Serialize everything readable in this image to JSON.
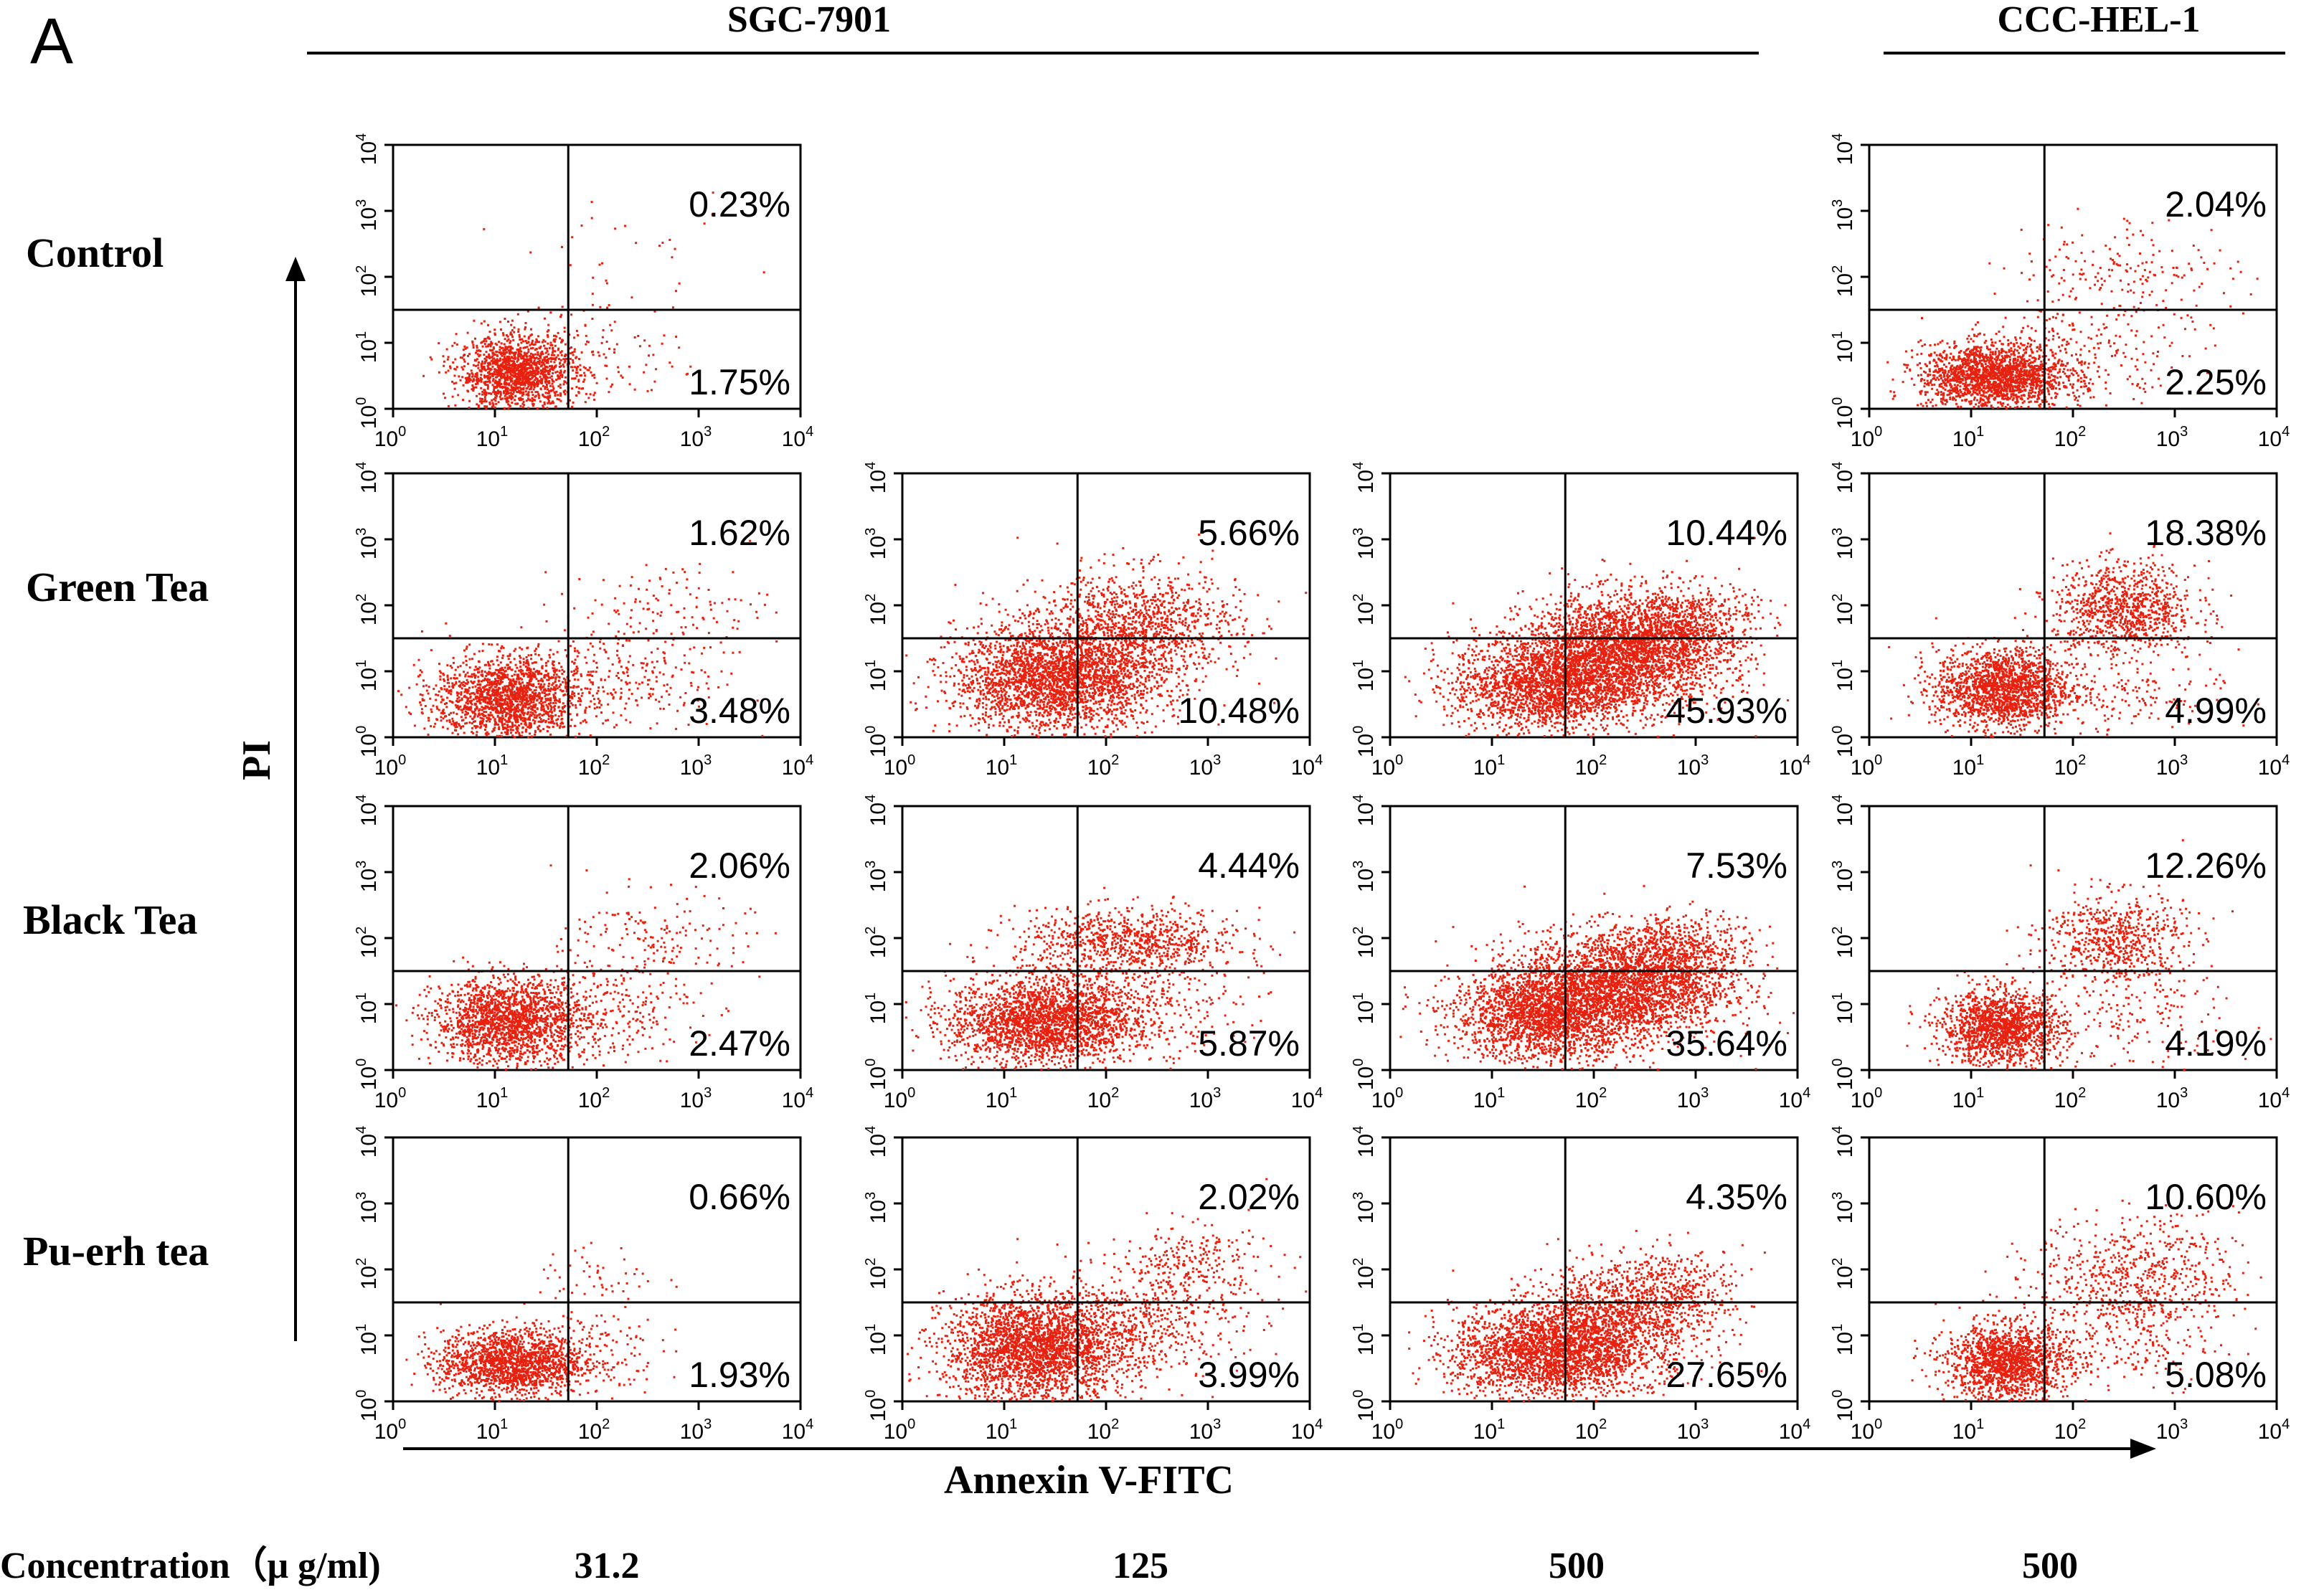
{
  "figure": {
    "panel_label": "A",
    "cell_lines": [
      "SGC-7901",
      "CCC-HEL-1"
    ],
    "row_labels": [
      "Control",
      "Green Tea",
      "Black Tea",
      "Pu-erh tea"
    ],
    "concentration_label": "Concentration（μ g/ml)",
    "concentrations": [
      "31.2",
      "125",
      "500",
      "500"
    ],
    "x_axis_title": "Annexin V-FITC",
    "y_axis_title": "PI"
  },
  "colors": {
    "dots": "#e8200e",
    "axes": "#000000",
    "quadrant_lines": "#000000"
  },
  "chart_data": {
    "type": "scatter",
    "description_of_axes": "log10 fluorescence, 10^0 to 10^4",
    "xlim": [
      0,
      4
    ],
    "ylim": [
      0,
      4
    ],
    "x_log": true,
    "y_log": true,
    "x_ticks": [
      "0",
      "1",
      "2",
      "3",
      "4"
    ],
    "y_ticks": [
      "0",
      "1",
      "2",
      "3",
      "4"
    ],
    "tick_base": "10",
    "panels": [
      {
        "row": 0,
        "col": 0,
        "cell_line": "SGC-7901",
        "treatment": "Control",
        "concentration": "31.2",
        "upper_right": "0.23%",
        "lower_right": "1.75%",
        "quad_x": 1.72,
        "quad_y": 1.5,
        "clusters": [
          {
            "cx": 1.2,
            "cy": 0.55,
            "sx": 0.28,
            "sy": 0.28,
            "n": 1500
          },
          {
            "cx": 1.9,
            "cy": 0.8,
            "sx": 0.45,
            "sy": 0.45,
            "n": 160
          },
          {
            "cx": 2.4,
            "cy": 2.2,
            "sx": 0.5,
            "sy": 0.45,
            "n": 30
          }
        ]
      },
      {
        "row": 1,
        "col": 0,
        "cell_line": "SGC-7901",
        "treatment": "Green Tea",
        "concentration": "31.2",
        "upper_right": "1.62%",
        "lower_right": "3.48%",
        "quad_x": 1.72,
        "quad_y": 1.5,
        "clusters": [
          {
            "cx": 1.1,
            "cy": 0.6,
            "sx": 0.35,
            "sy": 0.32,
            "n": 1700
          },
          {
            "cx": 2.2,
            "cy": 0.9,
            "sx": 0.5,
            "sy": 0.4,
            "n": 260
          },
          {
            "cx": 2.7,
            "cy": 1.9,
            "sx": 0.5,
            "sy": 0.4,
            "n": 140
          }
        ]
      },
      {
        "row": 1,
        "col": 1,
        "cell_line": "SGC-7901",
        "treatment": "Green Tea",
        "concentration": "125",
        "upper_right": "5.66%",
        "lower_right": "10.48%",
        "quad_x": 1.72,
        "quad_y": 1.5,
        "clusters": [
          {
            "cx": 1.5,
            "cy": 0.9,
            "sx": 0.5,
            "sy": 0.4,
            "n": 2700
          },
          {
            "cx": 2.3,
            "cy": 1.7,
            "sx": 0.5,
            "sy": 0.42,
            "n": 1100
          }
        ]
      },
      {
        "row": 1,
        "col": 2,
        "cell_line": "SGC-7901",
        "treatment": "Green Tea",
        "concentration": "500",
        "upper_right": "10.44%",
        "lower_right": "45.93%",
        "quad_x": 1.72,
        "quad_y": 1.5,
        "clusters": [
          {
            "cx": 1.5,
            "cy": 0.8,
            "sx": 0.45,
            "sy": 0.35,
            "n": 1900
          },
          {
            "cx": 2.3,
            "cy": 1.3,
            "sx": 0.5,
            "sy": 0.42,
            "n": 2900
          },
          {
            "cx": 2.9,
            "cy": 1.75,
            "sx": 0.35,
            "sy": 0.3,
            "n": 500
          }
        ]
      },
      {
        "row": 1,
        "col": 3,
        "cell_line": "CCC-HEL-1",
        "treatment": "Green Tea",
        "concentration": "500",
        "upper_right": "18.38%",
        "lower_right": "4.99%",
        "quad_x": 1.72,
        "quad_y": 1.5,
        "clusters": [
          {
            "cx": 1.3,
            "cy": 0.75,
            "sx": 0.33,
            "sy": 0.3,
            "n": 1700
          },
          {
            "cx": 2.5,
            "cy": 1.95,
            "sx": 0.35,
            "sy": 0.35,
            "n": 950
          },
          {
            "cx": 2.4,
            "cy": 0.6,
            "sx": 0.55,
            "sy": 0.35,
            "n": 170
          }
        ]
      },
      {
        "row": 2,
        "col": 0,
        "cell_line": "SGC-7901",
        "treatment": "Black Tea",
        "concentration": "31.2",
        "upper_right": "2.06%",
        "lower_right": "2.47%",
        "quad_x": 1.72,
        "quad_y": 1.5,
        "clusters": [
          {
            "cx": 1.15,
            "cy": 0.75,
            "sx": 0.38,
            "sy": 0.32,
            "n": 1800
          },
          {
            "cx": 2.1,
            "cy": 0.95,
            "sx": 0.45,
            "sy": 0.4,
            "n": 220
          },
          {
            "cx": 2.6,
            "cy": 2.0,
            "sx": 0.45,
            "sy": 0.35,
            "n": 160
          }
        ]
      },
      {
        "row": 2,
        "col": 1,
        "cell_line": "SGC-7901",
        "treatment": "Black Tea",
        "concentration": "125",
        "upper_right": "4.44%",
        "lower_right": "5.87%",
        "quad_x": 1.72,
        "quad_y": 1.5,
        "clusters": [
          {
            "cx": 1.35,
            "cy": 0.75,
            "sx": 0.45,
            "sy": 0.33,
            "n": 2200
          },
          {
            "cx": 2.2,
            "cy": 1.95,
            "sx": 0.55,
            "sy": 0.25,
            "n": 850
          },
          {
            "cx": 2.3,
            "cy": 1.0,
            "sx": 0.5,
            "sy": 0.35,
            "n": 380
          }
        ]
      },
      {
        "row": 2,
        "col": 2,
        "cell_line": "SGC-7901",
        "treatment": "Black Tea",
        "concentration": "500",
        "upper_right": "7.53%",
        "lower_right": "35.64%",
        "quad_x": 1.72,
        "quad_y": 1.5,
        "clusters": [
          {
            "cx": 1.5,
            "cy": 0.85,
            "sx": 0.45,
            "sy": 0.35,
            "n": 2100
          },
          {
            "cx": 2.3,
            "cy": 1.3,
            "sx": 0.5,
            "sy": 0.42,
            "n": 2600
          },
          {
            "cx": 2.9,
            "cy": 1.8,
            "sx": 0.33,
            "sy": 0.28,
            "n": 450
          }
        ]
      },
      {
        "row": 2,
        "col": 3,
        "cell_line": "CCC-HEL-1",
        "treatment": "Black Tea",
        "concentration": "500",
        "upper_right": "12.26%",
        "lower_right": "4.19%",
        "quad_x": 1.72,
        "quad_y": 1.5,
        "clusters": [
          {
            "cx": 1.3,
            "cy": 0.65,
            "sx": 0.3,
            "sy": 0.28,
            "n": 1500
          },
          {
            "cx": 2.4,
            "cy": 2.0,
            "sx": 0.35,
            "sy": 0.35,
            "n": 650
          },
          {
            "cx": 2.6,
            "cy": 0.7,
            "sx": 0.6,
            "sy": 0.4,
            "n": 160
          }
        ]
      },
      {
        "row": 3,
        "col": 0,
        "cell_line": "SGC-7901",
        "treatment": "Pu-erh tea",
        "concentration": "31.2",
        "upper_right": "0.66%",
        "lower_right": "1.93%",
        "quad_x": 1.72,
        "quad_y": 1.5,
        "clusters": [
          {
            "cx": 1.15,
            "cy": 0.6,
            "sx": 0.35,
            "sy": 0.25,
            "n": 1600
          },
          {
            "cx": 1.9,
            "cy": 0.8,
            "sx": 0.35,
            "sy": 0.35,
            "n": 150
          },
          {
            "cx": 2.0,
            "cy": 1.9,
            "sx": 0.3,
            "sy": 0.25,
            "n": 50
          }
        ]
      },
      {
        "row": 3,
        "col": 1,
        "cell_line": "SGC-7901",
        "treatment": "Pu-erh tea",
        "concentration": "125",
        "upper_right": "2.02%",
        "lower_right": "3.99%",
        "quad_x": 1.72,
        "quad_y": 1.5,
        "clusters": [
          {
            "cx": 1.3,
            "cy": 0.8,
            "sx": 0.45,
            "sy": 0.4,
            "n": 2600
          },
          {
            "cx": 2.3,
            "cy": 1.2,
            "sx": 0.5,
            "sy": 0.4,
            "n": 500
          },
          {
            "cx": 2.8,
            "cy": 2.1,
            "sx": 0.4,
            "sy": 0.3,
            "n": 260
          }
        ]
      },
      {
        "row": 3,
        "col": 2,
        "cell_line": "SGC-7901",
        "treatment": "Pu-erh tea",
        "concentration": "500",
        "upper_right": "4.35%",
        "lower_right": "27.65%",
        "quad_x": 1.72,
        "quad_y": 1.5,
        "clusters": [
          {
            "cx": 1.5,
            "cy": 0.75,
            "sx": 0.45,
            "sy": 0.35,
            "n": 2200
          },
          {
            "cx": 2.2,
            "cy": 1.2,
            "sx": 0.45,
            "sy": 0.42,
            "n": 1300
          },
          {
            "cx": 2.8,
            "cy": 1.75,
            "sx": 0.35,
            "sy": 0.3,
            "n": 320
          }
        ]
      },
      {
        "row": 3,
        "col": 3,
        "cell_line": "CCC-HEL-1",
        "treatment": "Pu-erh tea",
        "concentration": "500",
        "upper_right": "10.60%",
        "lower_right": "5.08%",
        "quad_x": 1.72,
        "quad_y": 1.5,
        "clusters": [
          {
            "cx": 1.35,
            "cy": 0.6,
            "sx": 0.3,
            "sy": 0.28,
            "n": 1500
          },
          {
            "cx": 2.6,
            "cy": 1.9,
            "sx": 0.5,
            "sy": 0.45,
            "n": 650
          },
          {
            "cx": 2.4,
            "cy": 0.9,
            "sx": 0.5,
            "sy": 0.4,
            "n": 200
          }
        ]
      },
      {
        "row": 0,
        "col": 3,
        "cell_line": "CCC-HEL-1",
        "treatment": "Control",
        "concentration": "500",
        "upper_right": "2.04%",
        "lower_right": "2.25%",
        "quad_x": 1.72,
        "quad_y": 1.5,
        "clusters": [
          {
            "cx": 1.2,
            "cy": 0.5,
            "sx": 0.35,
            "sy": 0.25,
            "n": 1800
          },
          {
            "cx": 2.1,
            "cy": 0.8,
            "sx": 0.5,
            "sy": 0.35,
            "n": 250
          },
          {
            "cx": 2.5,
            "cy": 2.1,
            "sx": 0.55,
            "sy": 0.4,
            "n": 190
          }
        ]
      }
    ]
  }
}
